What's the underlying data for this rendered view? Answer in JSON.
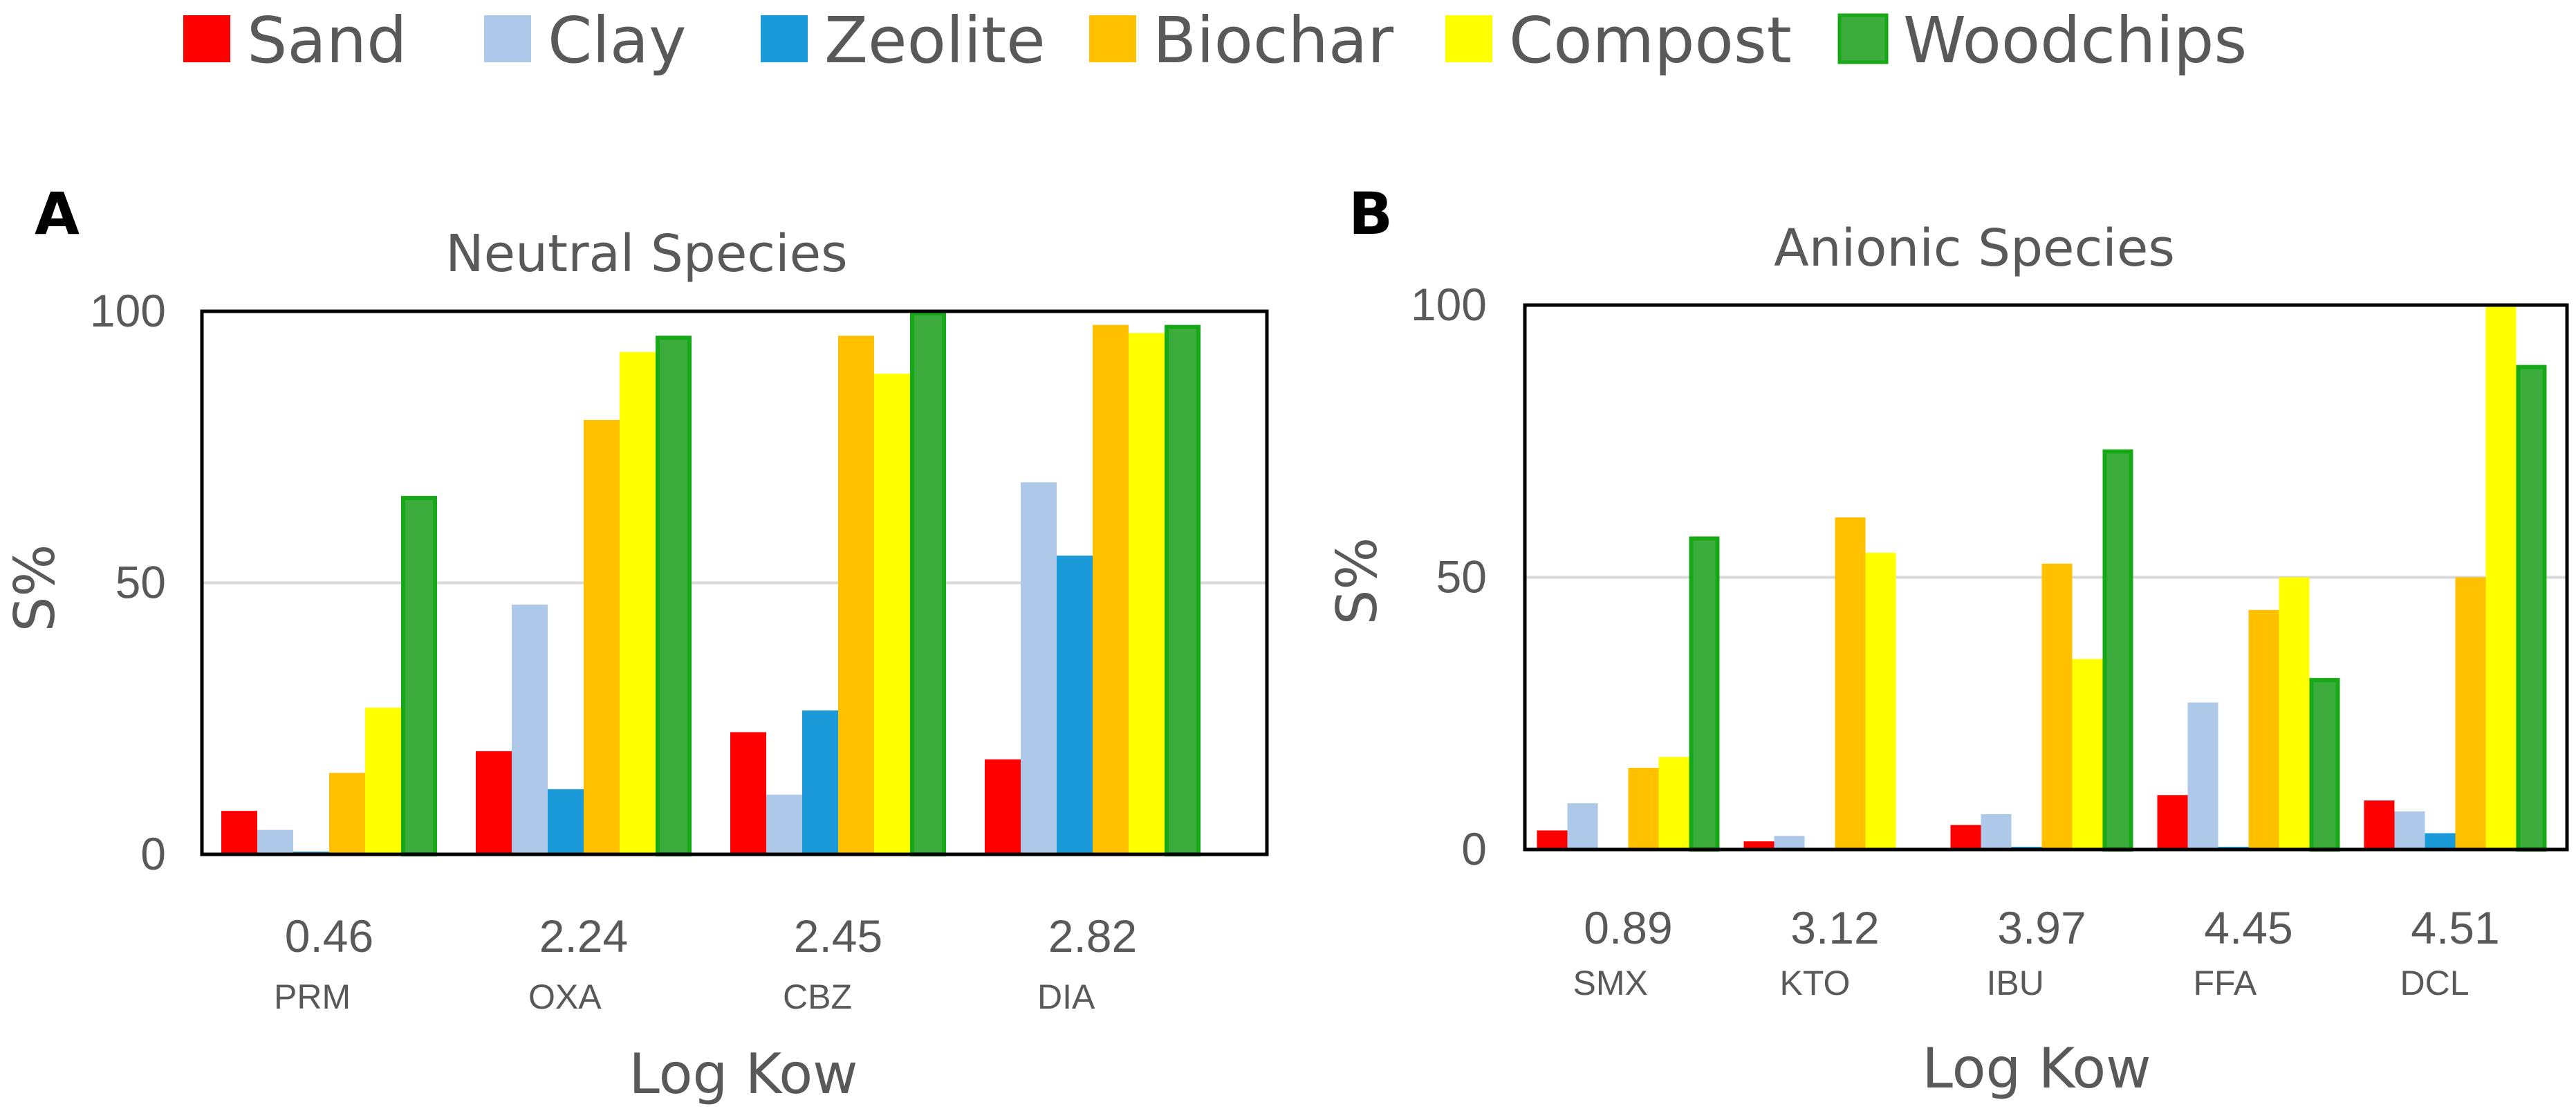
{
  "legend": [
    {
      "name": "Sand",
      "color": "#ff0000"
    },
    {
      "name": "Clay",
      "color": "#aec8ea"
    },
    {
      "name": "Zeolite",
      "color": "#1a9ad9"
    },
    {
      "name": "Biochar",
      "color": "#ffc000"
    },
    {
      "name": "Compost",
      "color": "#ffff00"
    },
    {
      "name": "Woodchips",
      "color": "#3cad3c",
      "stroke": "#17a817"
    }
  ],
  "chart_data": [
    {
      "type": "bar",
      "panel": "A",
      "title": "Neutral Species",
      "xlabel": "Log Kow",
      "ylabel": "S%",
      "ylim": [
        0,
        100
      ],
      "yticks": [
        "0",
        "50",
        "100"
      ],
      "categories": [
        "0.46",
        "2.24",
        "2.45",
        "2.82"
      ],
      "category_sublabels": [
        "PRM",
        "OXA",
        "CBZ",
        "DIA"
      ],
      "series": [
        {
          "name": "Sand",
          "values": [
            8,
            19,
            22.5,
            17.5
          ]
        },
        {
          "name": "Clay",
          "values": [
            4.5,
            46,
            11,
            68.5
          ]
        },
        {
          "name": "Zeolite",
          "values": [
            0.5,
            12,
            26.5,
            55
          ]
        },
        {
          "name": "Biochar",
          "values": [
            15,
            80,
            95.5,
            97.5
          ]
        },
        {
          "name": "Compost",
          "values": [
            27,
            92.5,
            88.5,
            96
          ]
        },
        {
          "name": "Woodchips",
          "values": [
            66,
            95.5,
            100,
            97.5
          ]
        }
      ]
    },
    {
      "type": "bar",
      "panel": "B",
      "title": "Anionic Species",
      "xlabel": "Log Kow",
      "ylabel": "S%",
      "ylim": [
        0,
        100
      ],
      "yticks": [
        "0",
        "50",
        "100"
      ],
      "categories": [
        "0.89",
        "3.12",
        "3.97",
        "4.45",
        "4.51"
      ],
      "category_sublabels": [
        "SMX",
        "KTO",
        "IBU",
        "FFA",
        "DCL"
      ],
      "series": [
        {
          "name": "Sand",
          "values": [
            3.5,
            1.5,
            4.5,
            10,
            9
          ]
        },
        {
          "name": "Clay",
          "values": [
            8.5,
            2.5,
            6.5,
            27,
            7
          ]
        },
        {
          "name": "Zeolite",
          "values": [
            0,
            0,
            0.5,
            0.5,
            3
          ]
        },
        {
          "name": "Biochar",
          "values": [
            15,
            61,
            52.5,
            44,
            50
          ]
        },
        {
          "name": "Compost",
          "values": [
            17,
            54.5,
            35,
            50,
            100
          ]
        },
        {
          "name": "Woodchips",
          "values": [
            57.5,
            0,
            73.5,
            31.5,
            89
          ]
        }
      ]
    }
  ]
}
